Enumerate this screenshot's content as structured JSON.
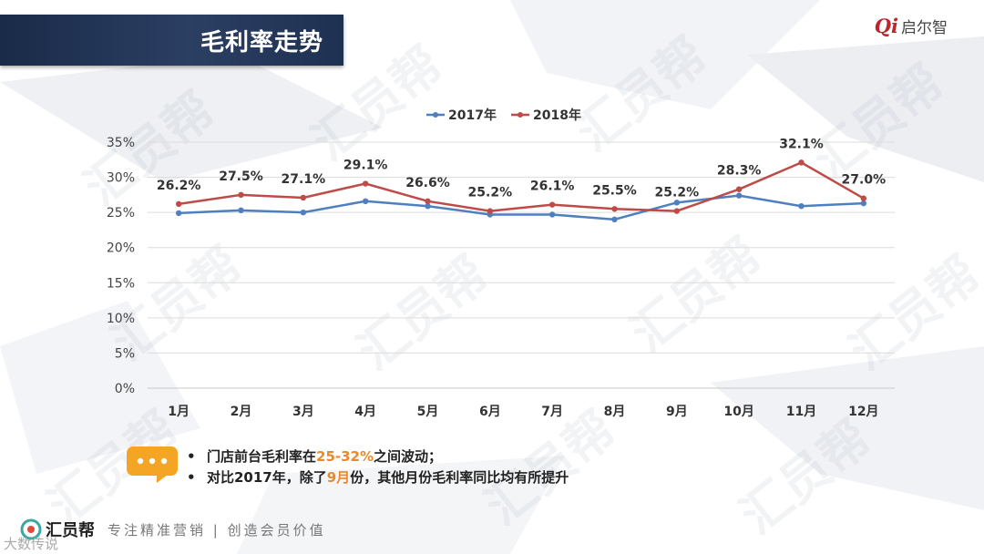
{
  "header": {
    "title": "毛利率走势",
    "logo_mark": "Qi",
    "logo_text": "启尔智"
  },
  "watermark_text": "汇员帮",
  "chart_data": {
    "type": "line",
    "categories": [
      "1月",
      "2月",
      "3月",
      "4月",
      "5月",
      "6月",
      "7月",
      "8月",
      "9月",
      "10月",
      "11月",
      "12月"
    ],
    "series": [
      {
        "name": "2017年",
        "color": "#4e7fbf",
        "values": [
          24.9,
          25.3,
          25.0,
          26.6,
          25.9,
          24.7,
          24.7,
          24.0,
          26.4,
          27.4,
          25.9,
          26.3
        ]
      },
      {
        "name": "2018年",
        "color": "#be4b48",
        "values": [
          26.2,
          27.5,
          27.1,
          29.1,
          26.6,
          25.2,
          26.1,
          25.5,
          25.2,
          28.3,
          32.1,
          27.0
        ]
      }
    ],
    "data_labels": [
      "26.2%",
      "27.5%",
      "27.1%",
      "29.1%",
      "26.6%",
      "25.2%",
      "26.1%",
      "25.5%",
      "25.2%",
      "28.3%",
      "32.1%",
      "27.0%"
    ],
    "yticks": [
      "0%",
      "5%",
      "10%",
      "15%",
      "20%",
      "25%",
      "30%",
      "35%"
    ],
    "ylim": [
      0,
      35
    ],
    "legend_position": "top-center",
    "grid": true
  },
  "notes": {
    "bullet": "•",
    "line1_before": "门店前台毛利率在",
    "line1_highlight": "25-32%",
    "line1_after": "之间波动；",
    "line2_before": "对比2017年，除了",
    "line2_highlight": "9月",
    "line2_after": "份，其他月份毛利率同比均有所提升"
  },
  "footer": {
    "brand": "汇员帮",
    "slogan": "专注精准营销 | 创造会员价值",
    "corner_text": "大数传说"
  },
  "colors": {
    "accent_orange": "#e8892c",
    "title_bar": "#1f3152",
    "note_icon": "#f5a524"
  }
}
